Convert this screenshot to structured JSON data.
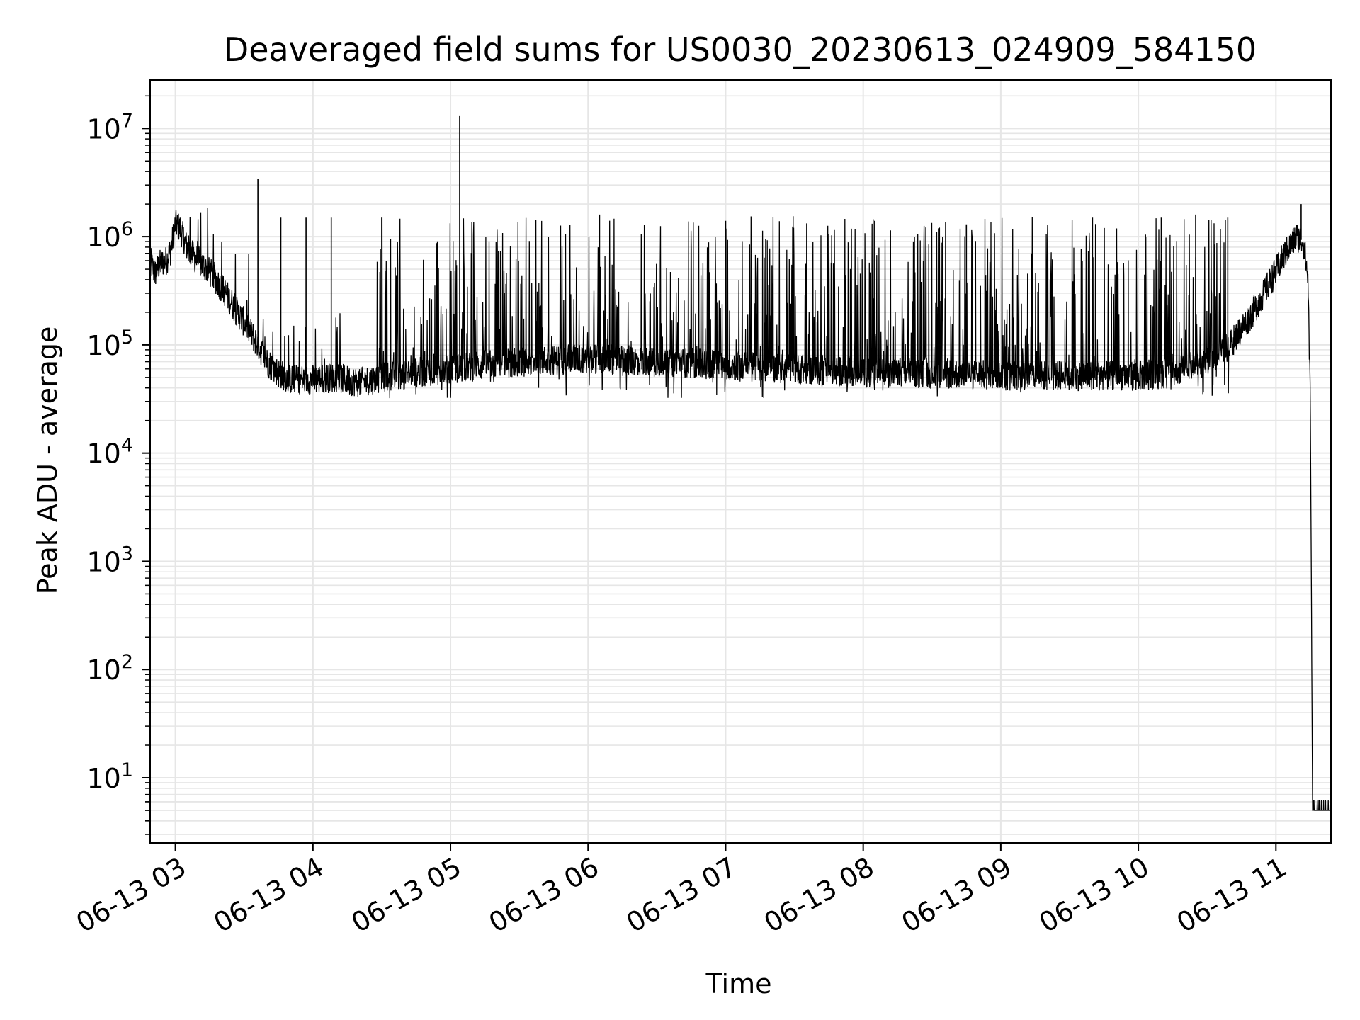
{
  "chart_data": {
    "type": "line",
    "title": "Deaveraged field sums for US0030_20230613_024909_584150",
    "xlabel": "Time",
    "ylabel": "Peak ADU - average",
    "yscale": "log",
    "ylim": [
      2.5,
      28000000
    ],
    "xlim": [
      "2023-06-13 02:49",
      "2023-06-13 11:24"
    ],
    "grid": true,
    "x_tick_labels": [
      "06-13 03",
      "06-13 04",
      "06-13 05",
      "06-13 06",
      "06-13 07",
      "06-13 08",
      "06-13 09",
      "06-13 10",
      "06-13 11"
    ],
    "x_ticks": [
      "2023-06-13 03:00",
      "2023-06-13 04:00",
      "2023-06-13 05:00",
      "2023-06-13 06:00",
      "2023-06-13 07:00",
      "2023-06-13 08:00",
      "2023-06-13 09:00",
      "2023-06-13 10:00",
      "2023-06-13 11:00"
    ],
    "y_ticks": [
      {
        "value": 10,
        "base": "10",
        "exp": "1"
      },
      {
        "value": 100,
        "base": "10",
        "exp": "2"
      },
      {
        "value": 1000,
        "base": "10",
        "exp": "3"
      },
      {
        "value": 10000,
        "base": "10",
        "exp": "4"
      },
      {
        "value": 100000,
        "base": "10",
        "exp": "5"
      },
      {
        "value": 1000000,
        "base": "10",
        "exp": "6"
      },
      {
        "value": 10000000,
        "base": "10",
        "exp": "7"
      }
    ],
    "line_color": "#000000",
    "grid_color": "#e6e6e6",
    "series": [
      {
        "points": [
          [
            "2023-06-13 02:49",
            600000
          ],
          [
            "2023-06-13 02:51",
            450000
          ],
          [
            "2023-06-13 02:53",
            550000
          ],
          [
            "2023-06-13 02:56",
            600000
          ],
          [
            "2023-06-13 02:58",
            750000
          ],
          [
            "2023-06-13 03:00",
            1300000
          ],
          [
            "2023-06-13 03:02",
            1200000
          ],
          [
            "2023-06-13 03:05",
            800000
          ],
          [
            "2023-06-13 03:08",
            650000
          ],
          [
            "2023-06-13 03:12",
            550000
          ],
          [
            "2023-06-13 03:17",
            420000
          ],
          [
            "2023-06-13 03:22",
            300000
          ],
          [
            "2023-06-13 03:27",
            200000
          ],
          [
            "2023-06-13 03:32",
            140000
          ],
          [
            "2023-06-13 03:36",
            100000
          ],
          [
            "2023-06-13 03:40",
            70000
          ],
          [
            "2023-06-13 03:45",
            55000
          ],
          [
            "2023-06-13 03:50",
            48000
          ],
          [
            "2023-06-13 04:00",
            48000
          ],
          [
            "2023-06-13 04:10",
            50000
          ],
          [
            "2023-06-13 04:20",
            45000
          ],
          [
            "2023-06-13 04:30",
            50000
          ],
          [
            "2023-06-13 04:45",
            55000
          ],
          [
            "2023-06-13 05:00",
            60000
          ],
          [
            "2023-06-13 05:30",
            70000
          ],
          [
            "2023-06-13 06:00",
            75000
          ],
          [
            "2023-06-13 06:30",
            70000
          ],
          [
            "2023-06-13 07:00",
            65000
          ],
          [
            "2023-06-13 07:30",
            60000
          ],
          [
            "2023-06-13 08:00",
            55000
          ],
          [
            "2023-06-13 08:30",
            55000
          ],
          [
            "2023-06-13 09:00",
            52000
          ],
          [
            "2023-06-13 09:30",
            52000
          ],
          [
            "2023-06-13 10:00",
            52000
          ],
          [
            "2023-06-13 10:15",
            55000
          ],
          [
            "2023-06-13 10:30",
            70000
          ],
          [
            "2023-06-13 10:40",
            100000
          ],
          [
            "2023-06-13 10:50",
            200000
          ],
          [
            "2023-06-13 10:58",
            400000
          ],
          [
            "2023-06-13 11:04",
            700000
          ],
          [
            "2023-06-13 11:09",
            1000000
          ],
          [
            "2023-06-13 11:12",
            900000
          ],
          [
            "2023-06-13 11:14",
            400000
          ],
          [
            "2023-06-13 11:15",
            30000
          ],
          [
            "2023-06-13 11:16",
            5
          ],
          [
            "2023-06-13 11:24",
            5
          ]
        ]
      }
    ],
    "spikes": [
      [
        "2023-06-13 03:36",
        3400000
      ],
      [
        "2023-06-13 05:04",
        13000000
      ],
      [
        "2023-06-13 11:11",
        2000000
      ],
      [
        "2023-06-13 03:46",
        1500000
      ],
      [
        "2023-06-13 03:57",
        1500000
      ],
      [
        "2023-06-13 04:08",
        1500000
      ],
      [
        "2023-06-13 04:30",
        1500000
      ],
      [
        "2023-06-13 06:05",
        1600000
      ],
      [
        "2023-06-13 07:00",
        1400000
      ],
      [
        "2023-06-13 08:05",
        1400000
      ],
      [
        "2023-06-13 08:45",
        1300000
      ],
      [
        "2023-06-13 09:40",
        1500000
      ],
      [
        "2023-06-13 10:10",
        1500000
      ],
      [
        "2023-06-13 10:25",
        1600000
      ],
      [
        "2023-06-13 10:39",
        1500000
      ]
    ],
    "noise_band": {
      "from": "2023-06-13 04:28",
      "to": "2023-06-13 10:40",
      "low": 32000,
      "high": 1550000
    }
  }
}
